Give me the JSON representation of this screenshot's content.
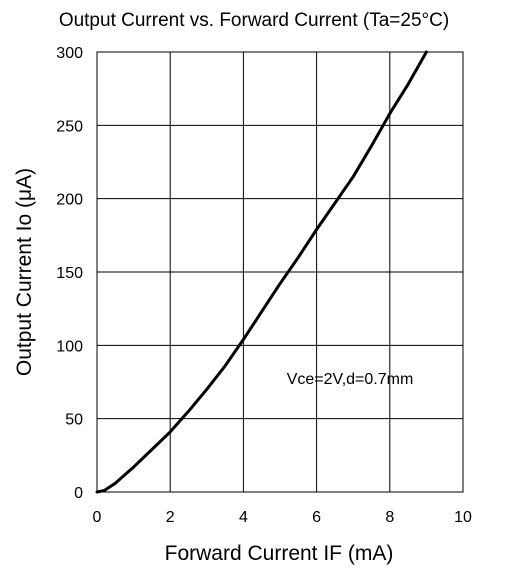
{
  "chart_data": {
    "type": "line",
    "title": "Output Current vs. Forward Current (Ta=25°C)",
    "xlabel": "Forward Current IF (mA)",
    "ylabel": "Output Current Io (μA)",
    "annotation": "Vce=2V,d=0.7mm",
    "xlim": [
      0,
      10
    ],
    "ylim": [
      0,
      300
    ],
    "xticks": [
      0,
      2,
      4,
      6,
      8,
      10
    ],
    "yticks": [
      0,
      50,
      100,
      150,
      200,
      250,
      300
    ],
    "grid": true,
    "series": [
      {
        "color": "#000000",
        "x": [
          0,
          0.2,
          0.5,
          1.0,
          1.5,
          2.0,
          2.5,
          3.0,
          3.5,
          4.0,
          4.5,
          5.0,
          5.5,
          6.0,
          6.5,
          7.0,
          7.5,
          8.0,
          8.5,
          9.0
        ],
        "y": [
          0,
          1,
          6,
          17,
          29,
          41,
          55,
          70,
          86,
          104,
          123,
          142,
          160,
          179,
          197,
          215,
          236,
          258,
          278,
          300
        ]
      }
    ]
  }
}
